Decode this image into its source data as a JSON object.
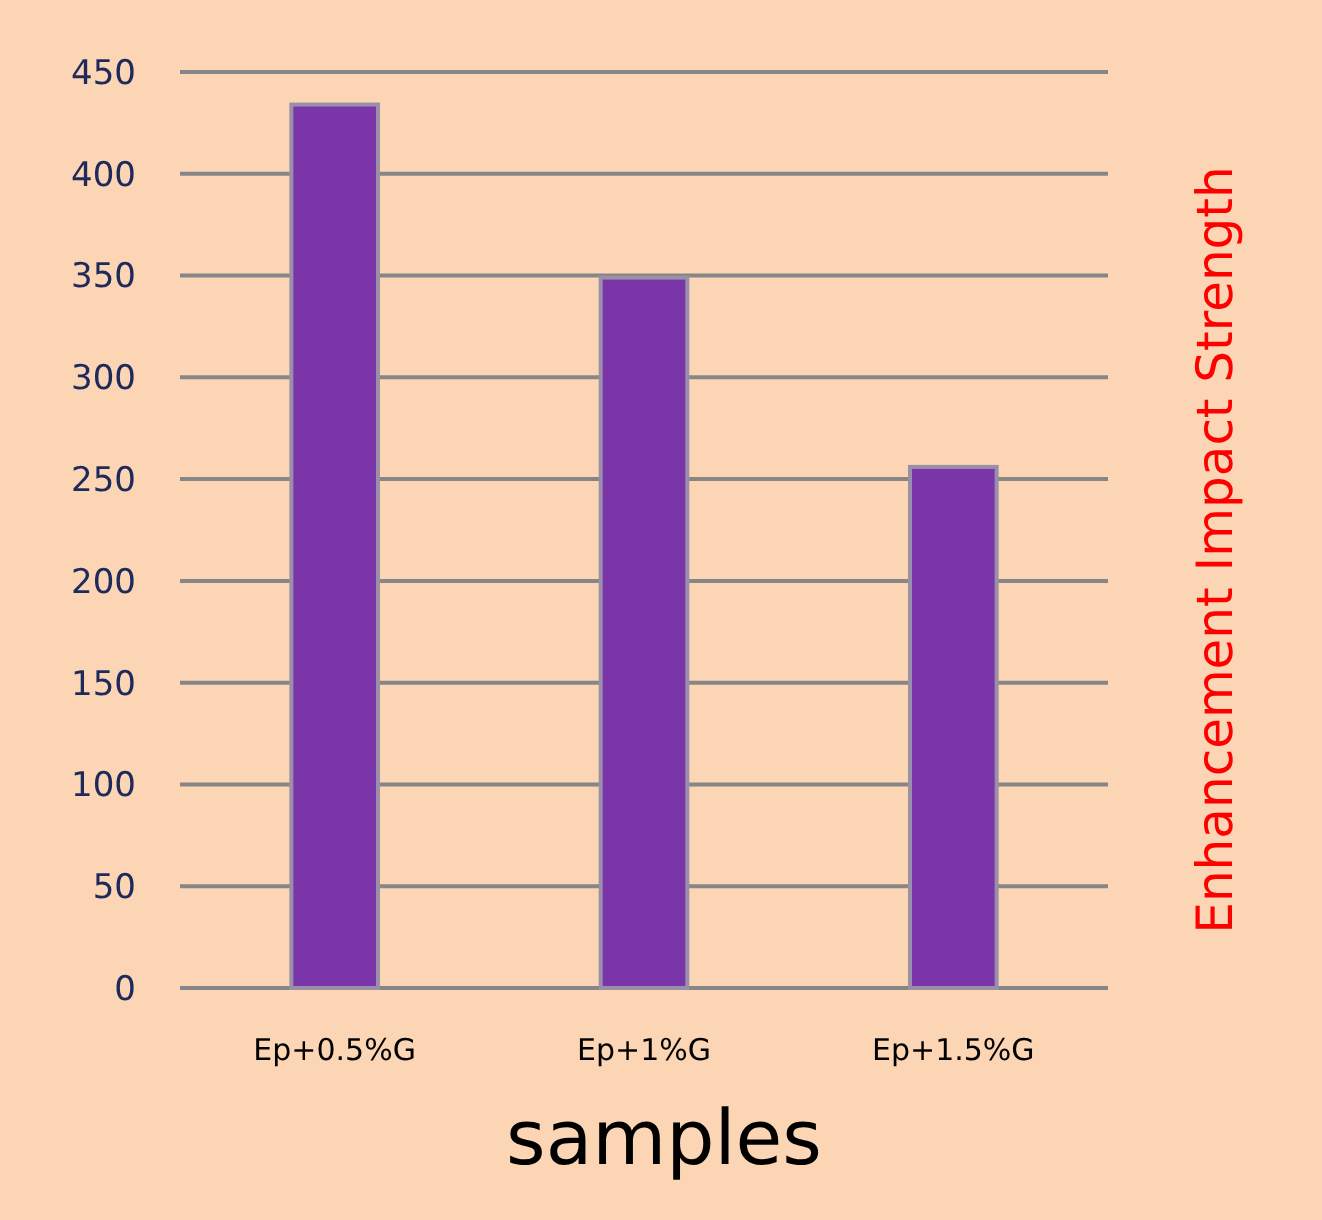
{
  "chart_data": {
    "type": "bar",
    "xlabel": "samples",
    "ylabel": "Enhancement Impact Strength",
    "categories": [
      "Ep+0.5%G",
      "Ep+1%G",
      "Ep+1.5%G"
    ],
    "values": [
      434,
      349,
      256
    ],
    "color": "#7a35a8",
    "ylim": [
      0,
      450
    ],
    "yticks": [
      0,
      50,
      100,
      150,
      200,
      250,
      300,
      350,
      400,
      450
    ],
    "grid": "y"
  }
}
